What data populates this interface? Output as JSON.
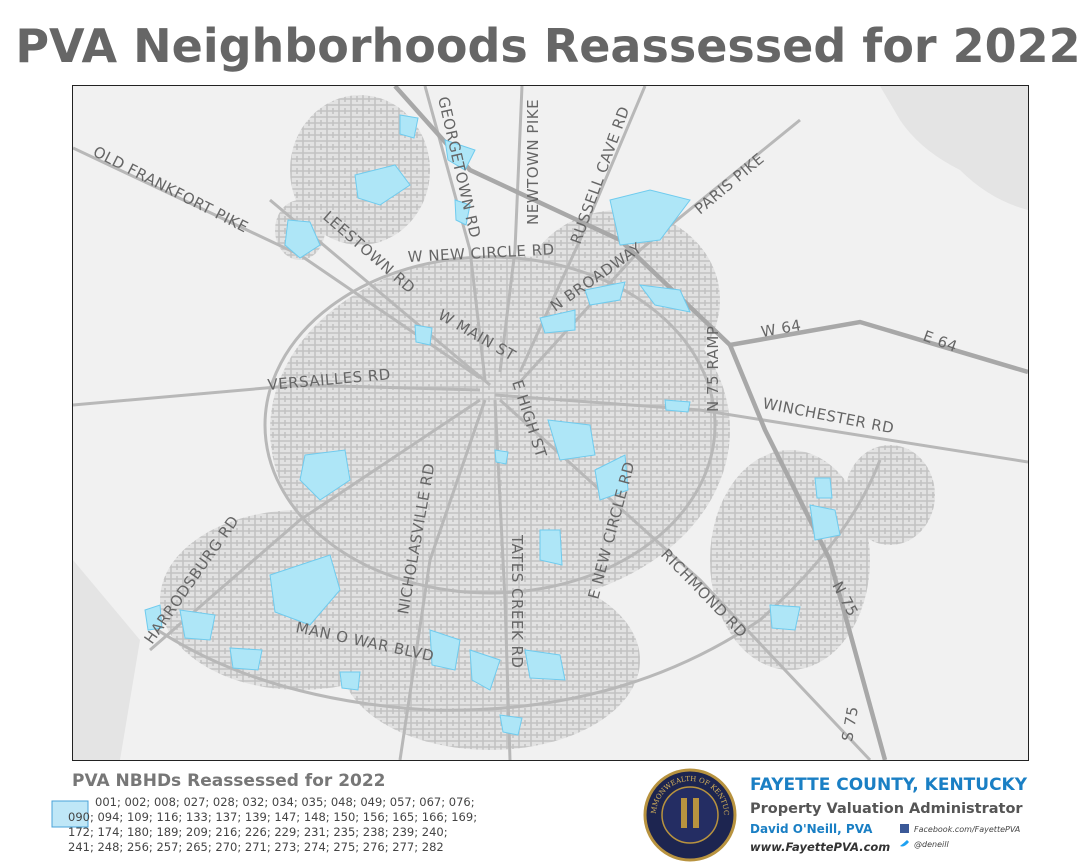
{
  "title": "PVA Neighborhoods Reassessed for 2022",
  "map": {
    "road_labels": [
      "OLD FRANKFORT PIKE",
      "LEESTOWN RD",
      "GEORGETOWN RD",
      "NEWTOWN PIKE",
      "RUSSELL CAVE RD",
      "PARIS PIKE",
      "W NEW CIRCLE RD",
      "N BROADWAY",
      "W MAIN ST",
      "E HIGH ST",
      "VERSAILLES RD",
      "N 75 RAMP",
      "W 64",
      "E 64",
      "WINCHESTER RD",
      "NICHOLASVILLE RD",
      "TATES CREEK RD",
      "E NEW CIRCLE RD",
      "RICHMOND RD",
      "HARRODSBURG RD",
      "MAN O WAR BLVD",
      "N 75",
      "S 75"
    ]
  },
  "legend": {
    "title": "PVA NBHDs Reassessed for 2022",
    "codes": [
      "001; 002; 008; 027; 028; 032; 034; 035; 048; 049; 057; 067; 076;",
      "090; 094; 109; 116; 133; 137; 139; 147; 148; 150; 156; 165; 166; 169;",
      "172; 174; 180; 189; 209; 216; 226; 229; 231; 235; 238; 239; 240;",
      "241; 248; 256; 257; 265; 270; 271; 273; 274; 275; 276; 277; 282"
    ]
  },
  "footer": {
    "seal_text": "COMMONWEALTH OF KENTUCKY",
    "county": "FAYETTE COUNTY, KENTUCKY",
    "office": "Property Valuation Administrator",
    "name": "David O'Neill, PVA",
    "website": "www.FayettePVA.com",
    "facebook": "Facebook.com/FayettePVA",
    "twitter": "@deneill"
  }
}
